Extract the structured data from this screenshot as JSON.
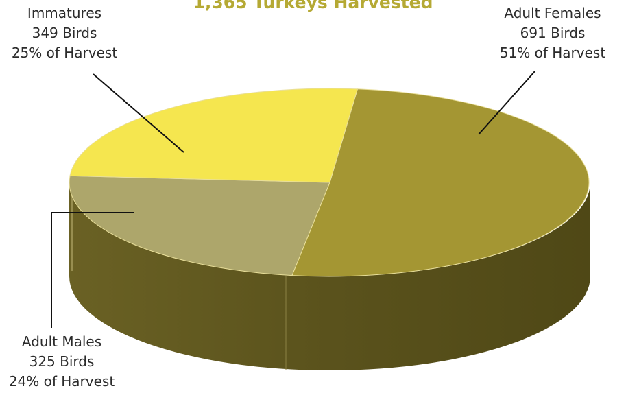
{
  "title": "1,365 Turkeys Harvested",
  "chart_data": {
    "type": "pie",
    "title": "1,365 Turkeys Harvested",
    "slices": [
      {
        "name": "Immatures",
        "birds_label": "349 Birds",
        "share_label": "25% of Harvest",
        "birds": 349,
        "percent": 25,
        "color": "#f5e64f"
      },
      {
        "name": "Adult Females",
        "birds_label": "691 Birds",
        "share_label": "51% of Harvest",
        "birds": 691,
        "percent": 51,
        "color": "#a49633"
      },
      {
        "name": "Adult Males",
        "birds_label": "325 Birds",
        "share_label": "24% of Harvest",
        "birds": 325,
        "percent": 24,
        "color": "#ada66b"
      }
    ],
    "side_color": "#635a20"
  }
}
